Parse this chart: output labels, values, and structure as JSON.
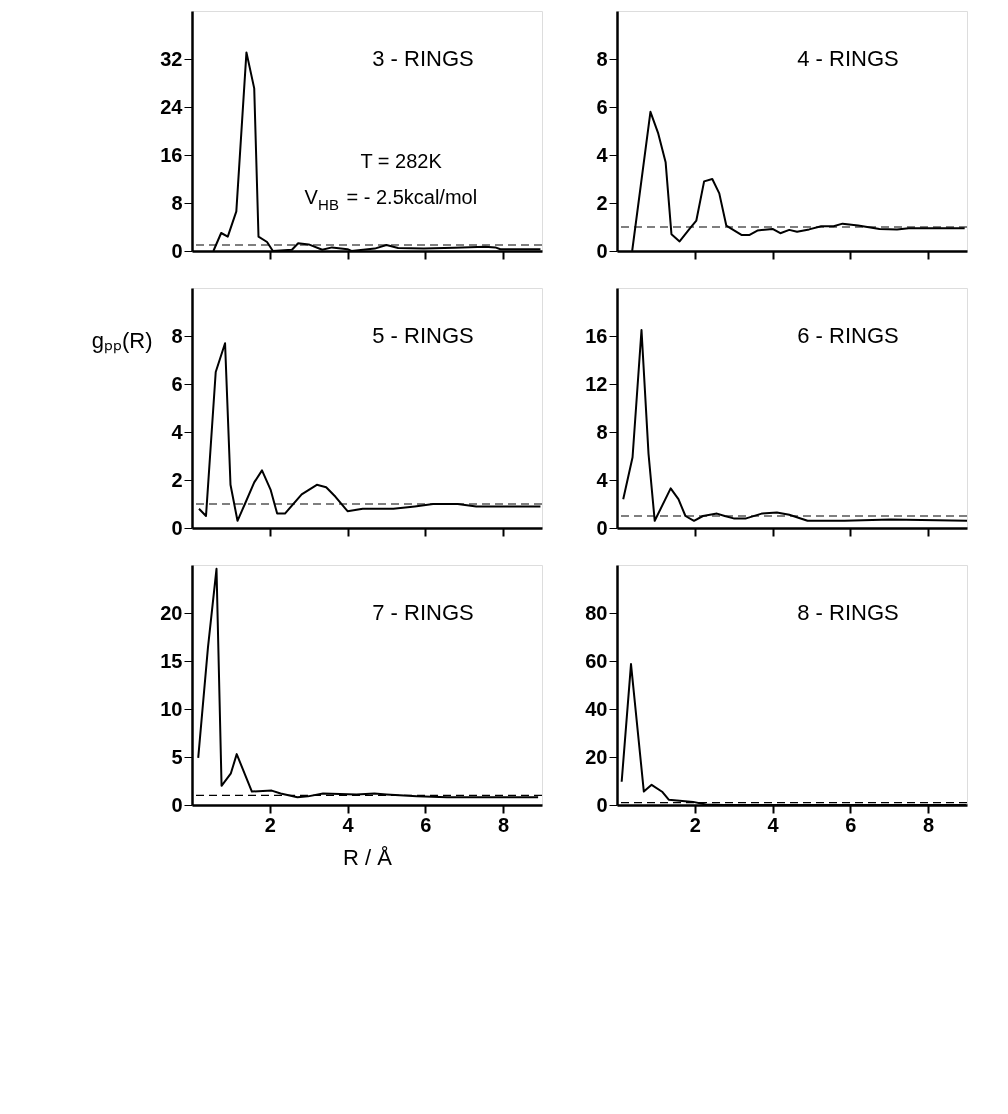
{
  "chart_data": [
    {
      "type": "line",
      "title": "3 - RINGS",
      "annotations": [
        "T = 282K",
        "V$_{HB}$ = - 2.5kcal/mol"
      ],
      "xlim": [
        0,
        9
      ],
      "xticks": [
        2,
        4,
        6,
        8
      ],
      "ylim": [
        0,
        40
      ],
      "yticks": [
        0,
        8,
        16,
        24,
        32
      ],
      "tick_labels": "y",
      "grid": false,
      "ref_lines": [
        {
          "axis": "y",
          "value": 1,
          "line_style": "dashed"
        }
      ],
      "series": [
        {
          "color": "#000000",
          "x": [
            0.55,
            0.75,
            0.92,
            1.14,
            1.4,
            1.6,
            1.71,
            1.93,
            2.08,
            2.57,
            2.73,
            3.0,
            3.35,
            3.6,
            4.0,
            4.1,
            4.7,
            5.0,
            5.3,
            5.96,
            6.75,
            7.54,
            7.8,
            7.93,
            8.96
          ],
          "values": [
            0,
            3.0,
            2.4,
            6.6,
            33.1,
            27.1,
            2.4,
            1.5,
            0,
            0.2,
            1.3,
            1.1,
            0.2,
            0.6,
            0.3,
            0,
            0.4,
            1.0,
            0.5,
            0.4,
            0.55,
            0.7,
            0.6,
            0.3,
            0.3
          ]
        }
      ]
    },
    {
      "type": "line",
      "title": "4 - RINGS",
      "xlim": [
        0,
        9
      ],
      "xticks": [
        2,
        4,
        6,
        8
      ],
      "ylim": [
        0,
        10
      ],
      "yticks": [
        0,
        2,
        4,
        6,
        8
      ],
      "tick_labels": "y",
      "grid": false,
      "ref_lines": [
        {
          "axis": "y",
          "value": 1,
          "line_style": "dashed"
        }
      ],
      "series": [
        {
          "color": "#000000",
          "x": [
            0.39,
            0.86,
            1.06,
            1.25,
            1.4,
            1.61,
            1.88,
            2.04,
            2.24,
            2.45,
            2.63,
            2.81,
            3.2,
            3.41,
            3.61,
            4.0,
            4.2,
            4.43,
            4.63,
            4.94,
            5.25,
            5.57,
            5.8,
            6.2,
            6.75,
            7.2,
            7.5,
            8.94
          ],
          "values": [
            0,
            5.8,
            4.9,
            3.7,
            0.7,
            0.4,
            0.95,
            1.27,
            2.9,
            3.0,
            2.4,
            1.06,
            0.67,
            0.67,
            0.85,
            0.92,
            0.74,
            0.88,
            0.8,
            0.9,
            1.03,
            1.03,
            1.14,
            1.06,
            0.92,
            0.9,
            0.95,
            0.95
          ]
        }
      ]
    },
    {
      "type": "line",
      "title": "5 - RINGS",
      "ylabel": "gₚₚ(R)",
      "xlim": [
        0,
        9
      ],
      "xticks": [
        2,
        4,
        6,
        8
      ],
      "ylim": [
        0,
        10
      ],
      "yticks": [
        0,
        2,
        4,
        6,
        8
      ],
      "tick_labels": "y",
      "grid": false,
      "ref_lines": [
        {
          "axis": "y",
          "value": 1,
          "line_style": "dashed"
        }
      ],
      "series": [
        {
          "color": "#000000",
          "x": [
            0.18,
            0.36,
            0.61,
            0.85,
            0.99,
            1.17,
            1.36,
            1.6,
            1.8,
            2.02,
            2.19,
            2.39,
            2.82,
            3.21,
            3.45,
            3.69,
            4.0,
            4.39,
            4.79,
            5.18,
            5.73,
            6.2,
            6.83,
            7.31,
            8.96
          ],
          "values": [
            0.8,
            0.5,
            6.5,
            7.7,
            1.8,
            0.3,
            1.0,
            1.9,
            2.4,
            1.6,
            0.6,
            0.6,
            1.4,
            1.8,
            1.7,
            1.3,
            0.7,
            0.8,
            0.8,
            0.8,
            0.9,
            1.0,
            1.0,
            0.9,
            0.9
          ]
        }
      ]
    },
    {
      "type": "line",
      "title": "6 - RINGS",
      "xlim": [
        0,
        9
      ],
      "xticks": [
        2,
        4,
        6,
        8
      ],
      "ylim": [
        0,
        20
      ],
      "yticks": [
        0,
        4,
        8,
        12,
        16
      ],
      "tick_labels": "y",
      "grid": false,
      "ref_lines": [
        {
          "axis": "y",
          "value": 1,
          "line_style": "dashed"
        }
      ],
      "series": [
        {
          "color": "#000000",
          "x": [
            0.16,
            0.4,
            0.63,
            0.81,
            0.97,
            1.38,
            1.58,
            1.76,
            1.98,
            2.21,
            2.57,
            2.77,
            3.0,
            3.32,
            3.72,
            4.11,
            4.43,
            4.9,
            5.85,
            7.04,
            9.0
          ],
          "values": [
            2.4,
            5.9,
            16.5,
            6.2,
            0.6,
            3.3,
            2.4,
            1.0,
            0.6,
            1.0,
            1.2,
            1.0,
            0.8,
            0.8,
            1.2,
            1.3,
            1.1,
            0.6,
            0.6,
            0.7,
            0.6
          ]
        }
      ]
    },
    {
      "type": "line",
      "title": "7 - RINGS",
      "xlabel": "R / Å",
      "xlim": [
        0,
        9
      ],
      "xticks": [
        2,
        4,
        6,
        8
      ],
      "ylim": [
        0,
        25
      ],
      "yticks": [
        0,
        5,
        10,
        15,
        20
      ],
      "grid": false,
      "ref_lines": [
        {
          "axis": "y",
          "value": 1,
          "line_style": "dashed"
        }
      ],
      "series": [
        {
          "color": "#000000",
          "x": [
            0.16,
            0.41,
            0.63,
            0.76,
            1.0,
            1.15,
            1.54,
            2.05,
            2.28,
            2.71,
            2.98,
            3.37,
            4.23,
            4.69,
            5.0,
            5.78,
            6.56,
            8.9
          ],
          "values": [
            4.9,
            16.4,
            24.6,
            2.0,
            3.3,
            5.3,
            1.4,
            1.5,
            1.2,
            0.8,
            0.9,
            1.2,
            1.1,
            1.2,
            1.1,
            0.9,
            0.8,
            0.8
          ]
        }
      ]
    },
    {
      "type": "line",
      "title": "8 - RINGS",
      "xlim": [
        0,
        9
      ],
      "xticks": [
        2,
        4,
        6,
        8
      ],
      "ylim": [
        0,
        100
      ],
      "yticks": [
        0,
        20,
        40,
        60,
        80
      ],
      "grid": false,
      "ref_lines": [
        {
          "axis": "y",
          "value": 1,
          "line_style": "dashed"
        }
      ],
      "series": [
        {
          "color": "#000000",
          "x": [
            0.12,
            0.36,
            0.69,
            0.89,
            1.17,
            1.33,
            1.96,
            2.28,
            2.75,
            8.98
          ],
          "values": [
            9.7,
            58.7,
            5.6,
            8.4,
            5.4,
            2.2,
            1.3,
            0.2,
            0,
            0
          ]
        }
      ]
    }
  ]
}
